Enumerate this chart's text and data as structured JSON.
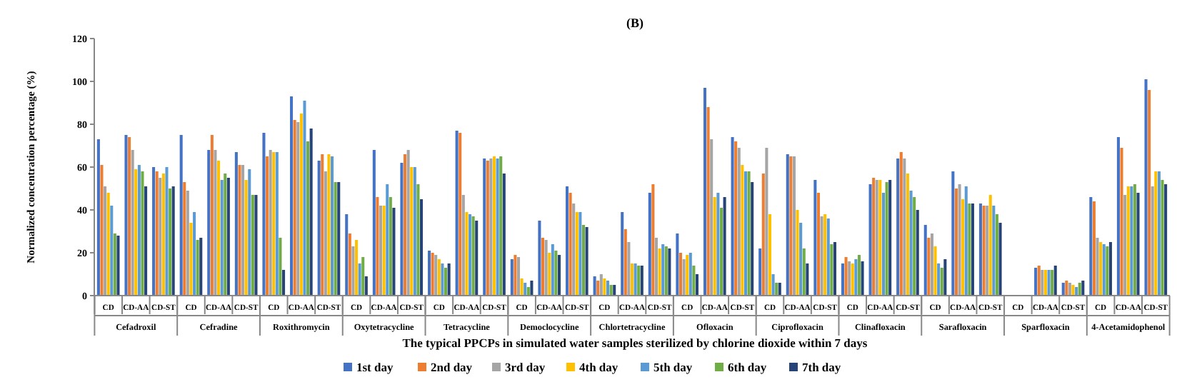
{
  "chart_data": {
    "type": "bar",
    "title": "(B)",
    "xlabel": "The typical PPCPs in simulated water samples sterilized by chlorine dioxide within 7 days",
    "ylabel": "Normalized concentration percentage (%)",
    "categories": [
      "CD",
      "CD-AA",
      "CD-ST",
      "CD",
      "CD-AA",
      "CD-ST",
      "CD",
      "CD-AA",
      "CD-ST",
      "CD",
      "CD-AA",
      "CD-ST",
      "CD",
      "CD-AA",
      "CD-ST",
      "CD",
      "CD-AA",
      "CD-ST",
      "CD",
      "CD-AA",
      "CD-ST",
      "CD",
      "CD-AA",
      "CD-ST",
      "CD",
      "CD-AA",
      "CD-ST",
      "CD",
      "CD-AA",
      "CD-ST",
      "CD",
      "CD-AA",
      "CD-ST",
      "CD",
      "CD-AA",
      "CD-ST",
      "CD",
      "CD-AA",
      "CD-ST"
    ],
    "annotations": [
      "Cefadroxil",
      "Cefradine",
      "Roxithromycin",
      "Oxytetracycline",
      "Tetracycline",
      "Democlocycline",
      "Chlortetracycline",
      "Ofloxacin",
      "Ciprofloxacin",
      "Clinafloxacin",
      "Sarafloxacin",
      "Sparfloxacin",
      "4-Acetamidophenol"
    ],
    "series": [
      {
        "name": "1st day",
        "color": "#4472c4",
        "values": [
          73,
          75,
          60,
          75,
          68,
          67,
          76,
          93,
          63,
          38,
          68,
          62,
          21,
          77,
          64,
          17,
          35,
          51,
          9,
          39,
          48,
          29,
          97,
          74,
          22,
          66,
          54,
          15,
          52,
          64,
          33,
          58,
          43,
          null,
          13,
          6,
          46,
          74,
          101
        ]
      },
      {
        "name": "2nd day",
        "color": "#ed7d31",
        "values": [
          61,
          74,
          58,
          53,
          75,
          61,
          65,
          82,
          66,
          29,
          46,
          66,
          20,
          76,
          63,
          19,
          27,
          48,
          7,
          31,
          52,
          20,
          88,
          72,
          57,
          65,
          48,
          18,
          55,
          67,
          27,
          50,
          42,
          null,
          14,
          7,
          44,
          69,
          96
        ]
      },
      {
        "name": "3rd day",
        "color": "#a5a5a5",
        "values": [
          51,
          68,
          55,
          49,
          68,
          61,
          68,
          81,
          58,
          23,
          42,
          68,
          19,
          47,
          64,
          18,
          26,
          43,
          10,
          25,
          27,
          17,
          73,
          69,
          69,
          65,
          37,
          16,
          54,
          64,
          29,
          52,
          42,
          null,
          12,
          6,
          27,
          47,
          51
        ]
      },
      {
        "name": "4th day",
        "color": "#ffc000",
        "values": [
          48,
          59,
          57,
          34,
          63,
          54,
          67,
          85,
          66,
          26,
          42,
          60,
          17,
          39,
          65,
          8,
          20,
          39,
          8,
          15,
          22,
          19,
          46,
          61,
          38,
          40,
          38,
          15,
          54,
          57,
          23,
          45,
          47,
          null,
          12,
          5,
          25,
          51,
          58
        ]
      },
      {
        "name": "5th day",
        "color": "#5b9bd5",
        "values": [
          42,
          61,
          60,
          39,
          54,
          59,
          67,
          91,
          65,
          15,
          52,
          60,
          15,
          38,
          64,
          6,
          24,
          39,
          7,
          15,
          24,
          20,
          48,
          58,
          10,
          34,
          36,
          17,
          48,
          49,
          15,
          51,
          42,
          null,
          12,
          4,
          24,
          51,
          58
        ]
      },
      {
        "name": "6th day",
        "color": "#70ad47",
        "values": [
          29,
          58,
          50,
          26,
          57,
          47,
          27,
          72,
          53,
          18,
          46,
          52,
          13,
          37,
          65,
          4,
          21,
          33,
          5,
          14,
          23,
          14,
          41,
          58,
          6,
          22,
          24,
          19,
          53,
          46,
          13,
          43,
          38,
          null,
          12,
          6,
          23,
          52,
          54
        ]
      },
      {
        "name": "7th day",
        "color": "#264478",
        "values": [
          28,
          51,
          51,
          27,
          55,
          47,
          12,
          78,
          53,
          9,
          41,
          45,
          15,
          35,
          57,
          7,
          19,
          32,
          5,
          14,
          22,
          10,
          46,
          53,
          6,
          15,
          25,
          16,
          54,
          40,
          17,
          43,
          34,
          null,
          14,
          7,
          25,
          48,
          52
        ]
      }
    ],
    "ylim": [
      0,
      120
    ],
    "yticks": [
      0,
      20,
      40,
      60,
      80,
      100,
      120
    ],
    "legend": "bottom"
  }
}
